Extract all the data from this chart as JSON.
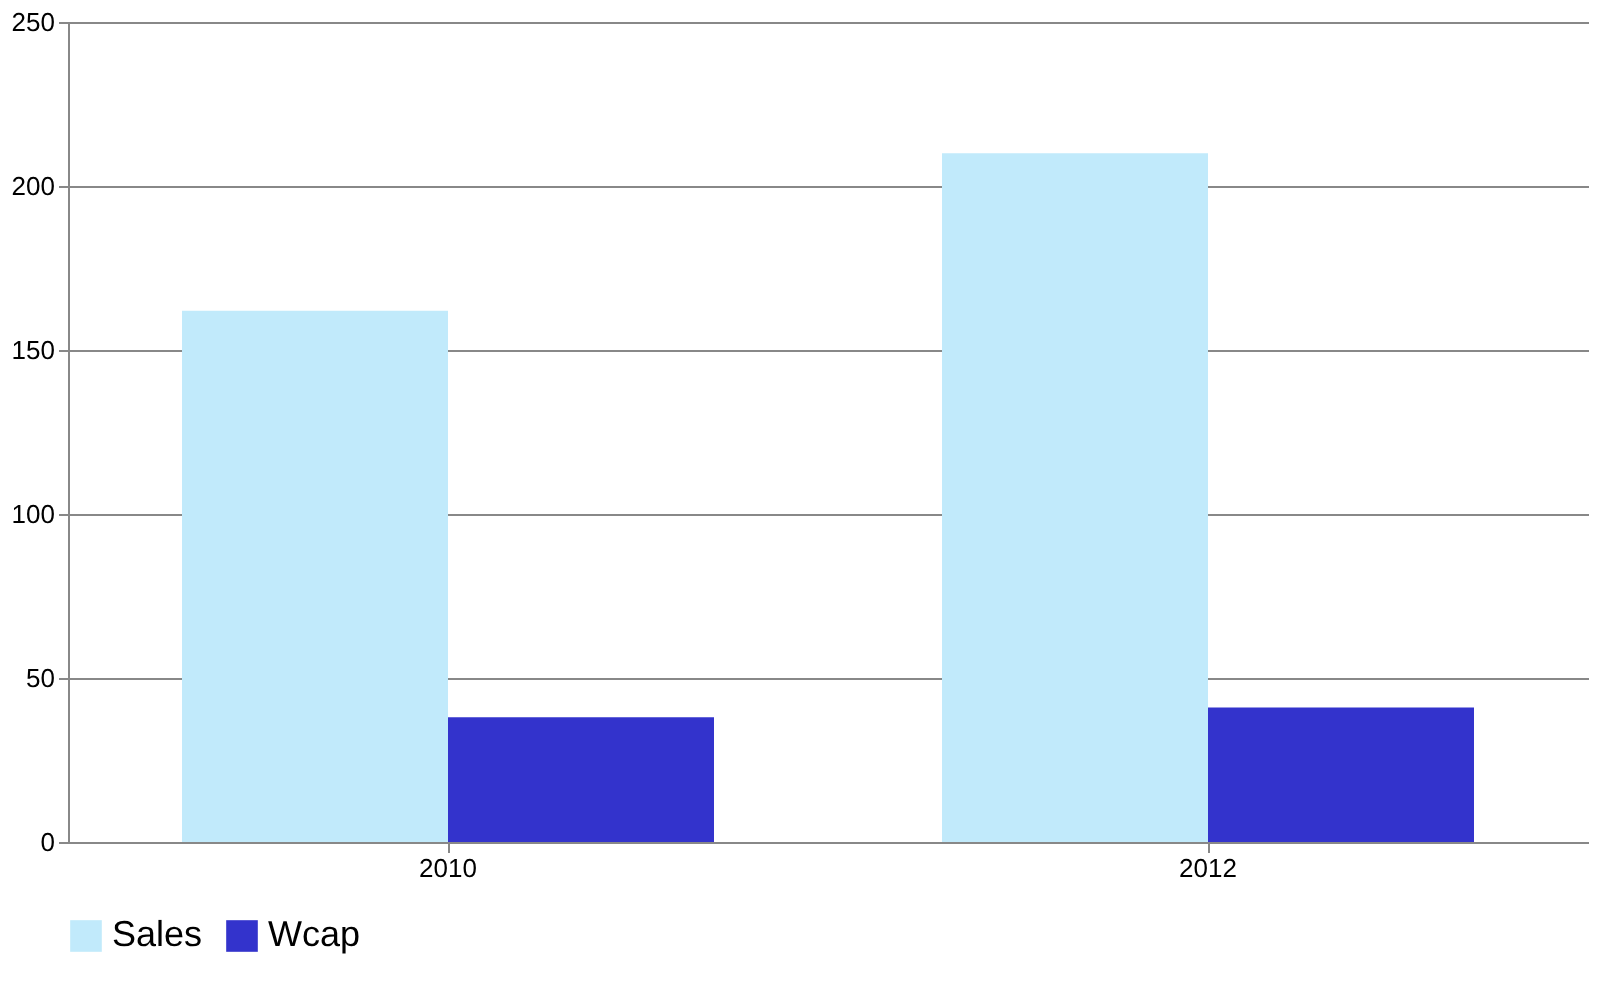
{
  "chart_data": {
    "type": "bar",
    "categories": [
      "2010",
      "2012"
    ],
    "series": [
      {
        "name": "Sales",
        "color": "#c1eafb",
        "values": [
          162,
          210
        ]
      },
      {
        "name": "Wcap",
        "color": "#3333cc",
        "values": [
          38,
          41
        ]
      }
    ],
    "ylim": [
      0,
      250
    ],
    "yticks": [
      0,
      50,
      100,
      150,
      200,
      250
    ],
    "grid": "y",
    "legend": "bottom"
  }
}
